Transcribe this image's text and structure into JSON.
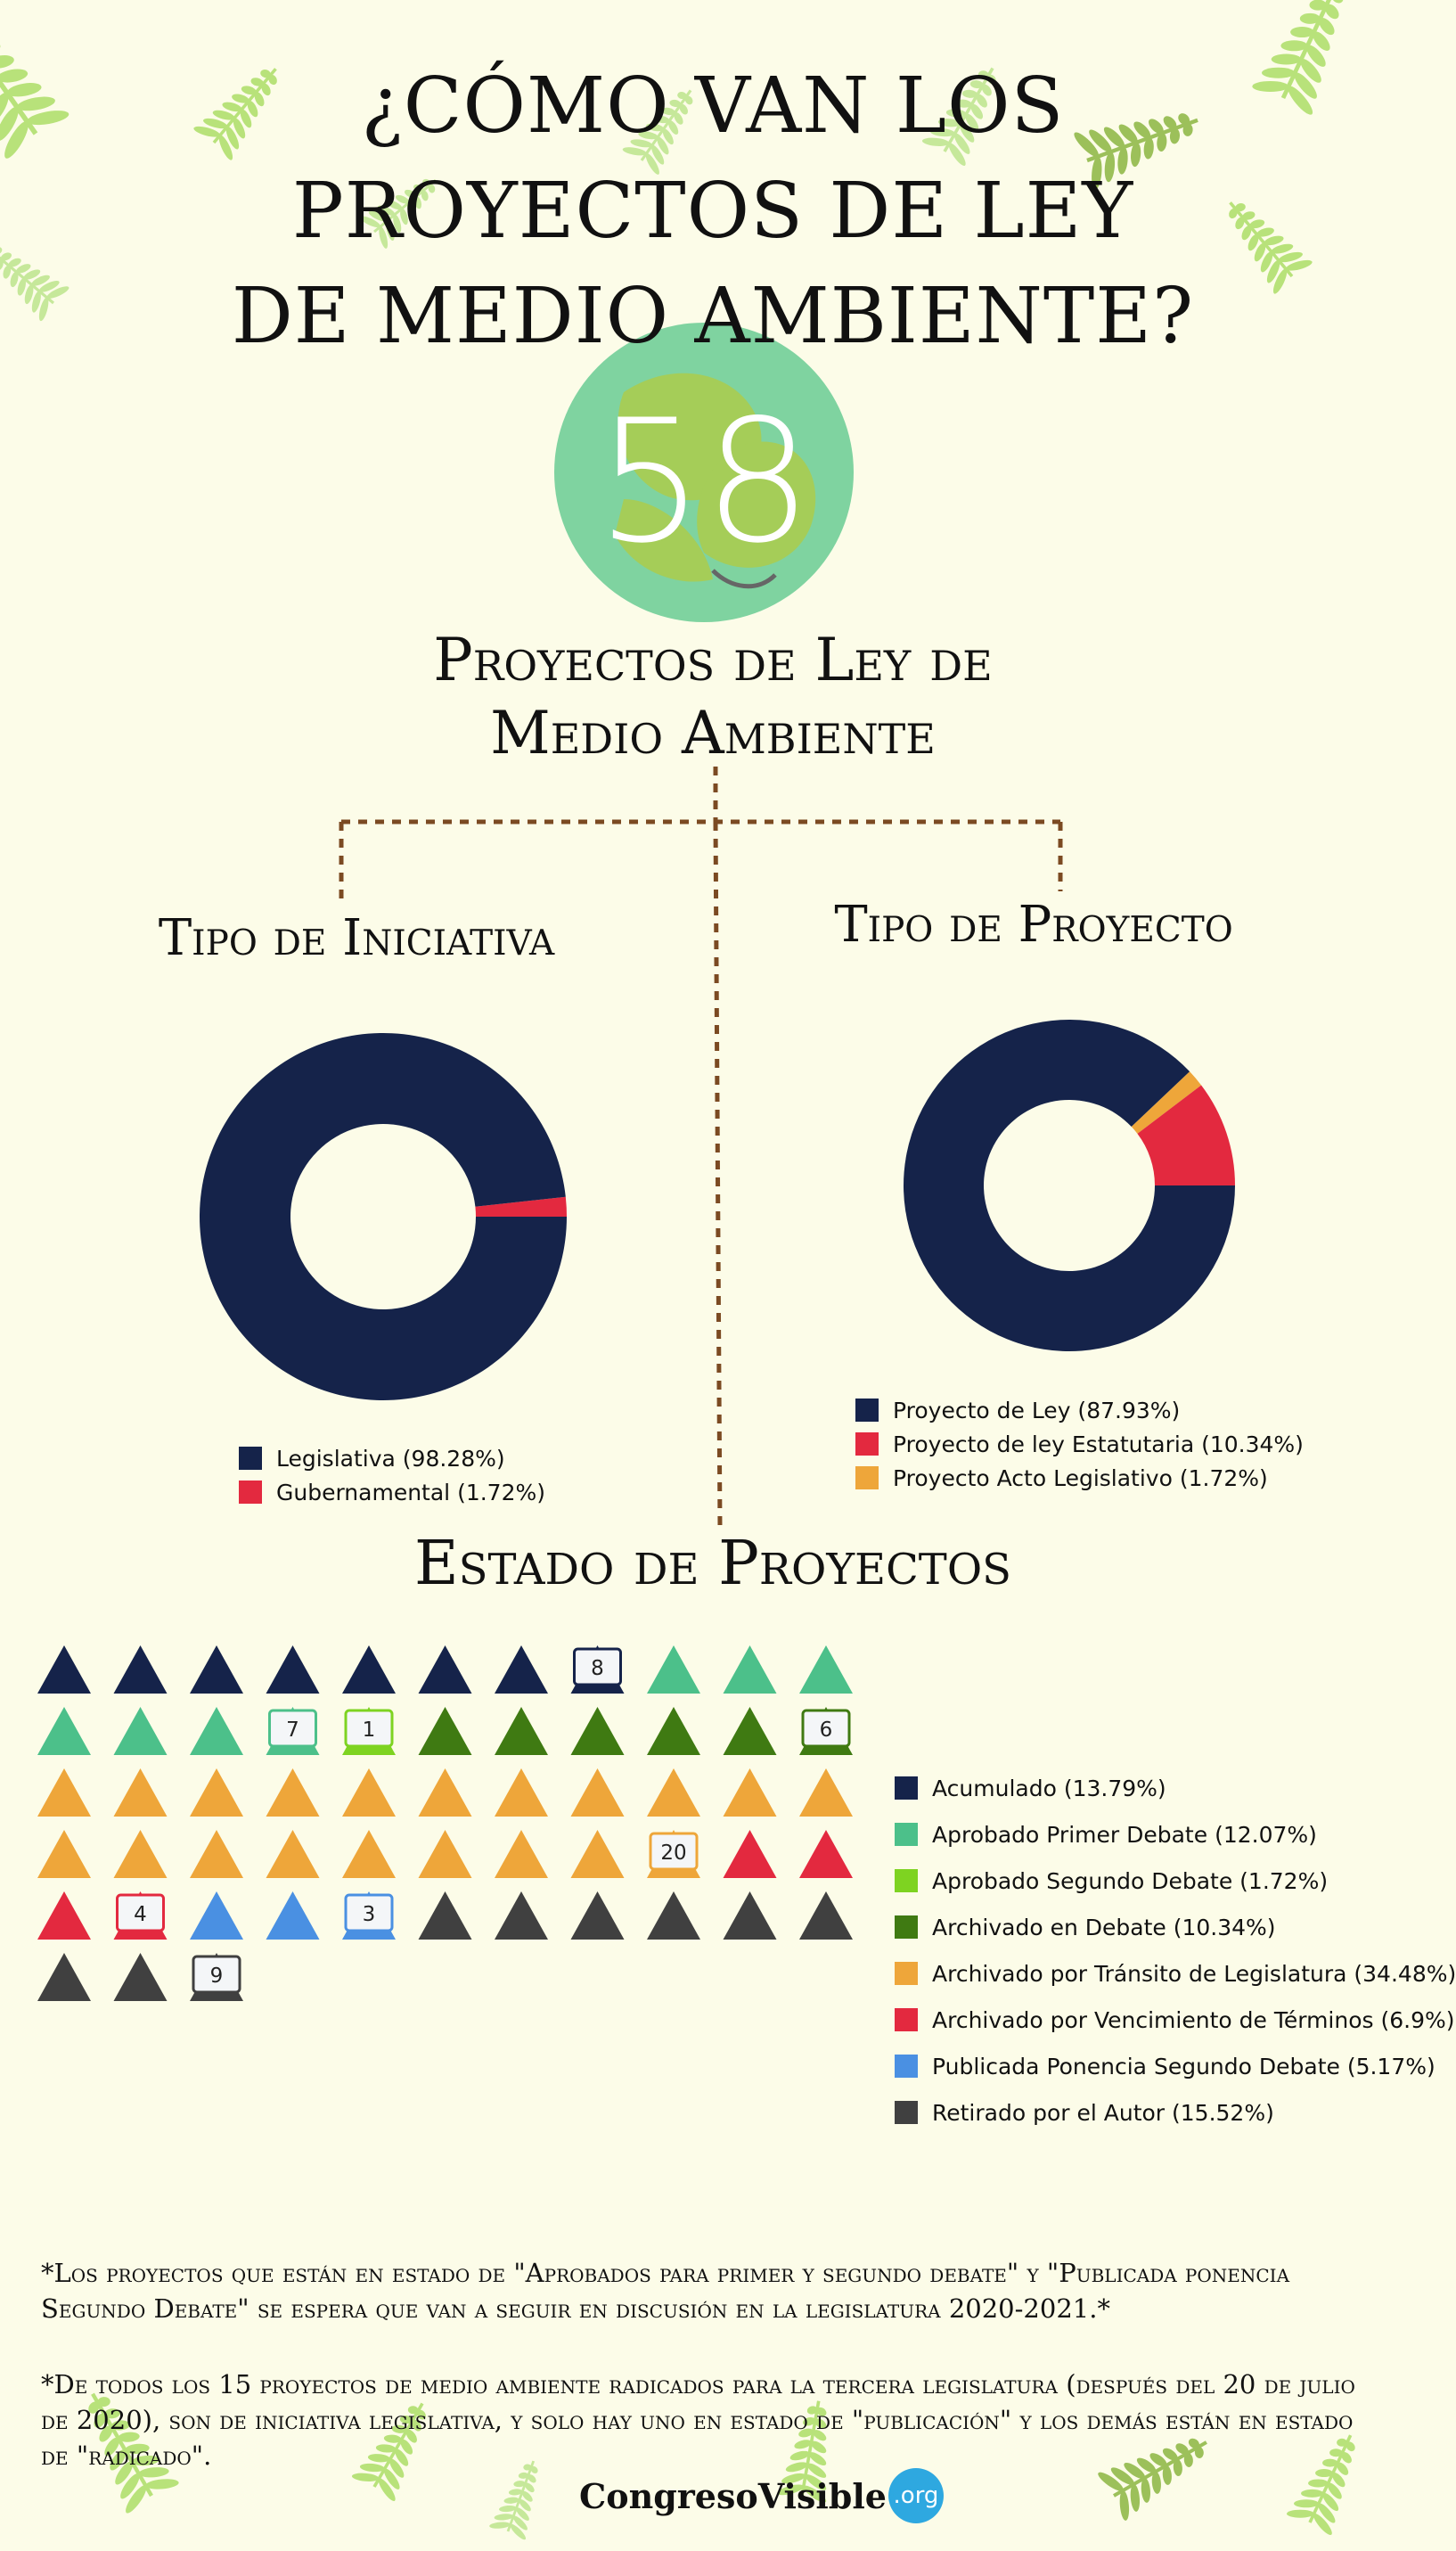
{
  "title_line1": "¿Cómo van los proyectos de ley",
  "title_line2": "de medio ambiente?",
  "total": "58",
  "subtitle_line1": "Proyectos de Ley de",
  "subtitle_line2": "Medio Ambiente",
  "logo": {
    "main": "CongresoVisible",
    "suffix": ".org"
  },
  "notes": [
    "*Los proyectos que están en estado de \"Aprobados para primer y segundo debate\" y \"Publicada ponencia Segundo Debate\" se espera que van a seguir en discusión en la legislatura 2020-2021.*",
    "*De todos los 15 proyectos de medio ambiente radicados para la tercera legislatura (después del 20 de julio de 2020), son de iniciativa legislativa, y solo hay uno en estado de \"publicación\" y los demás están en estado de \"radicado\"."
  ],
  "chart_data": [
    {
      "type": "pie",
      "title": "Tipo de Iniciativa",
      "donut": true,
      "legend_position": "bottom",
      "slices": [
        {
          "label": "Legislativa (98.28%)",
          "value": 98.28,
          "color": "#15234a"
        },
        {
          "label": "Gubernamental (1.72%)",
          "value": 1.72,
          "color": "#e3293f"
        }
      ]
    },
    {
      "type": "pie",
      "title": "Tipo de Proyecto",
      "donut": true,
      "legend_position": "bottom",
      "slices": [
        {
          "label": "Proyecto de Ley (87.93%)",
          "value": 87.93,
          "color": "#15234a"
        },
        {
          "label": "Proyecto de ley Estatutaria (10.34%)",
          "value": 10.34,
          "color": "#e3293f"
        },
        {
          "label": "Proyecto Acto Legislativo (1.72%)",
          "value": 1.72,
          "color": "#eea63a"
        }
      ]
    },
    {
      "type": "pictogram",
      "title": "Estado de Proyectos",
      "icon": "triangle-icon",
      "columns": 11,
      "legend_position": "right",
      "series": [
        {
          "name": "Acumulado (13.79%)",
          "count": 8,
          "color": "#15234a"
        },
        {
          "name": "Aprobado Primer Debate (12.07%)",
          "count": 7,
          "color": "#4cc08a"
        },
        {
          "name": "Aprobado Segundo Debate (1.72%)",
          "count": 1,
          "color": "#7ed321"
        },
        {
          "name": "Archivado en Debate (10.34%)",
          "count": 6,
          "color": "#3f7a12"
        },
        {
          "name": "Archivado por Tránsito de Legislatura (34.48%)",
          "count": 20,
          "color": "#eea63a"
        },
        {
          "name": "Archivado por Vencimiento de Términos (6.9%)",
          "count": 4,
          "color": "#e3293f"
        },
        {
          "name": "Publicada Ponencia Segundo Debate (5.17%)",
          "count": 3,
          "color": "#4a90e2"
        },
        {
          "name": "Retirado por el Autor (15.52%)",
          "count": 9,
          "color": "#404040"
        }
      ]
    }
  ]
}
